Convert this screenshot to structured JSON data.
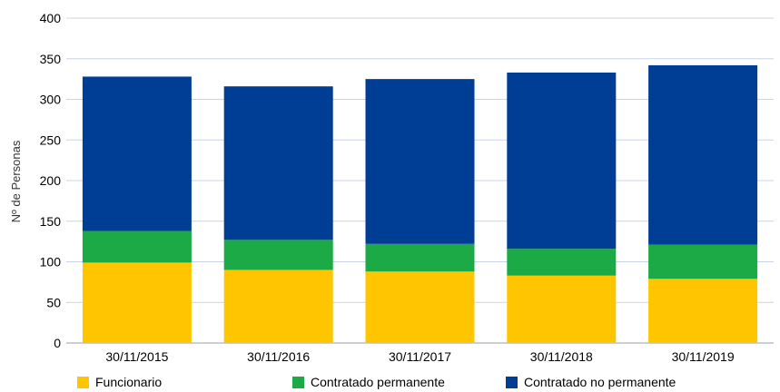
{
  "chart_data": {
    "type": "bar",
    "stacked": true,
    "categories": [
      "30/11/2015",
      "30/11/2016",
      "30/11/2017",
      "30/11/2018",
      "30/11/2019"
    ],
    "series": [
      {
        "name": "Funcionario",
        "color": "#FFC600",
        "values": [
          99,
          90,
          88,
          83,
          79
        ]
      },
      {
        "name": "Contratado permanente",
        "color": "#1BAA45",
        "values": [
          39,
          37,
          34,
          33,
          42
        ]
      },
      {
        "name": "Contratado no permanente",
        "color": "#003D94",
        "values": [
          190,
          189,
          203,
          217,
          221
        ]
      }
    ],
    "xlabel": "",
    "ylabel": "Nº de Personas",
    "ylim": [
      0,
      400
    ],
    "yticks": [
      0,
      50,
      100,
      150,
      200,
      250,
      300,
      350,
      400
    ],
    "grid": true,
    "legend": "bottom"
  }
}
